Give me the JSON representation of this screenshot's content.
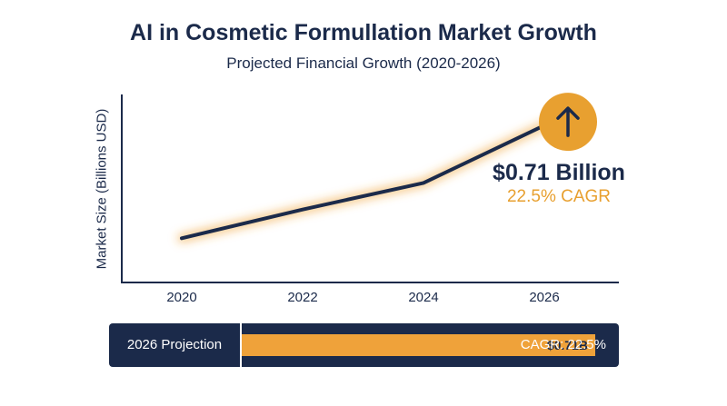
{
  "chart_data": {
    "type": "line",
    "title": "AI in Cosmetic Formullation Market Growth",
    "subtitle": "Projected Financial Growth (2020-2026)",
    "ylabel": "Market Size (Billions USD)",
    "xlabel": "",
    "x": [
      2020,
      2022,
      2024,
      2026
    ],
    "x_ticks": [
      "2020",
      "2022",
      "2024",
      "2026"
    ],
    "series": [
      {
        "values": [
          0.2,
          0.33,
          0.45,
          0.71
        ]
      }
    ],
    "ylim": [
      0,
      0.85
    ],
    "grid": false,
    "line_color": "#1b2a4a",
    "glow_color": "#f0a030",
    "annotation": {
      "value_label": "$0.71 Billion",
      "cagr_label": "22.5% CAGR",
      "icon": "arrow-up-icon",
      "icon_color": "#e8a030"
    }
  },
  "projection_bar": {
    "label": "2026 Projection",
    "value_label": "$0.71B",
    "fill_fraction": 0.73,
    "cagr": "CAGR: 22.5%",
    "background": "#1b2a4a",
    "fill_color": "#efa23a"
  }
}
